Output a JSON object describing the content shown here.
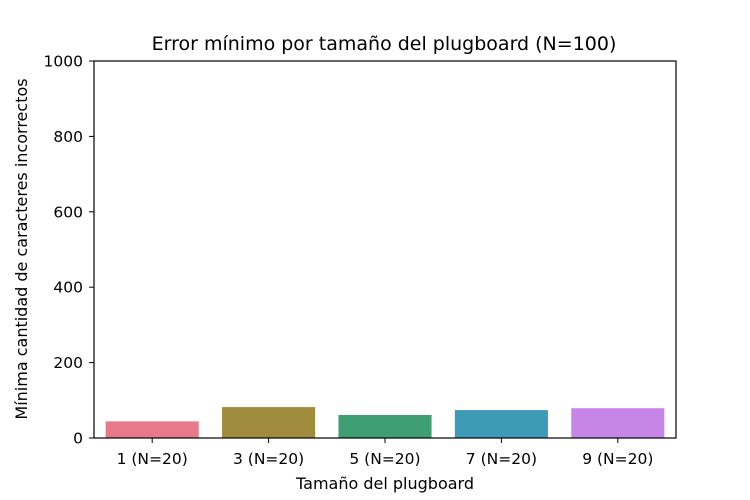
{
  "chart_data": {
    "type": "bar",
    "title": "Error mínimo por tamaño del plugboard (N=100)",
    "xlabel": "Tamaño del plugboard",
    "ylabel": "Mínima cantidad de caracteres incorrectos",
    "categories": [
      "1 (N=20)",
      "3 (N=20)",
      "5 (N=20)",
      "7 (N=20)",
      "9 (N=20)"
    ],
    "values": [
      44,
      82,
      61,
      74,
      79
    ],
    "colors": [
      "#e8798a",
      "#a08c3c",
      "#3f9e74",
      "#3e9bb8",
      "#c885e8"
    ],
    "ylim": [
      0,
      1000
    ],
    "yticks": [
      0,
      200,
      400,
      600,
      800,
      1000
    ],
    "grid": false,
    "legend": "none"
  }
}
